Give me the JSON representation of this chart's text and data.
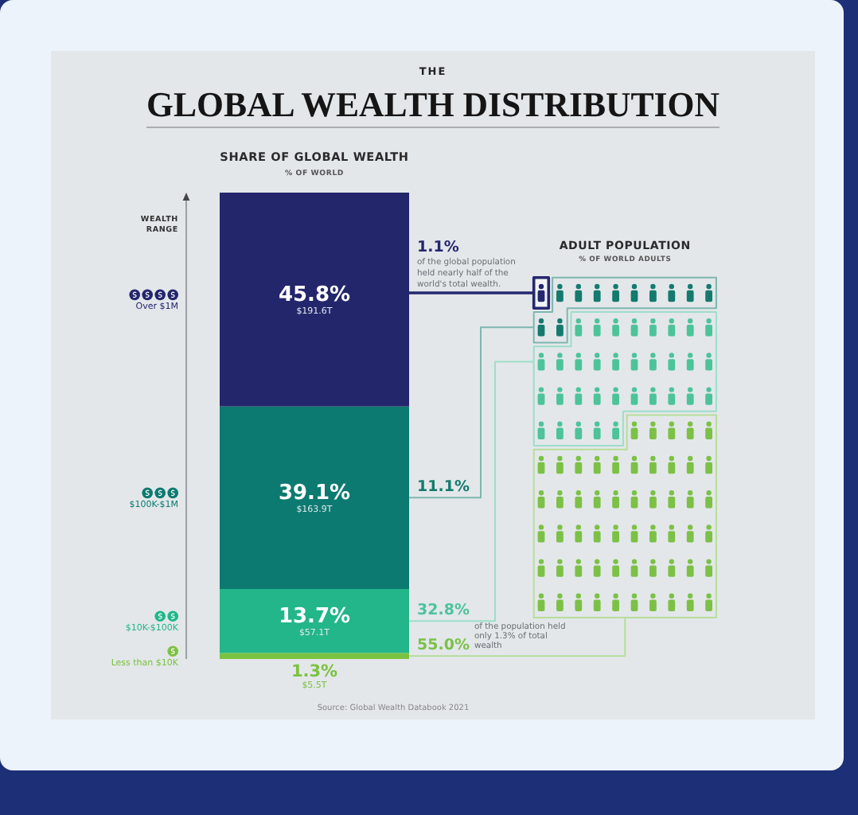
{
  "chart_data": [
    {
      "type": "other",
      "title": "THE\nGLOBAL WEALTH DISTRIBUTION",
      "annotations": [
        "Source: Global Wealth Databook 2021"
      ]
    },
    {
      "type": "bar",
      "stacked": true,
      "legend": "left",
      "title": "SHARE OF GLOBAL WEALTH",
      "subtitle": "% OF WORLD",
      "ylabel": "WEALTH RANGE",
      "categories": [
        null
      ],
      "series": [
        {
          "name": "Less than $10K",
          "color": "#7cc242",
          "values": [
            1.3
          ],
          "value_labels": [
            "1.3%\n$5.5T"
          ]
        },
        {
          "name": "$10K-$100K",
          "color": "#22b68a",
          "values": [
            13.7
          ],
          "value_labels": [
            "13.7%\n$57.1T"
          ]
        },
        {
          "name": "$100K-$1M",
          "color": "#0c7a70",
          "values": [
            39.1
          ],
          "value_labels": [
            "39.1%\n$163.9T"
          ]
        },
        {
          "name": "Over $1M",
          "color": "#24266c",
          "values": [
            45.8
          ],
          "value_labels": [
            "45.8%\n$191.6T"
          ]
        }
      ]
    },
    {
      "type": "other",
      "title": "ADULT POPULATION",
      "subtitle": "% OF WORLD ADULTS",
      "categories": [
        null,
        null,
        null,
        null
      ],
      "values": [
        1.1,
        11.1,
        32.8,
        55.0
      ],
      "value_labels": [
        "1.1%",
        "11.1%",
        "32.8%",
        "55.0%"
      ],
      "colors": [
        "#25286e",
        "#147a6e",
        "#4dc39a",
        "#7cc146"
      ],
      "annotations": [
        "of the global population held nearly half of the world's total wealth.",
        "of the population held only 1.3% of total wealth"
      ]
    }
  ]
}
